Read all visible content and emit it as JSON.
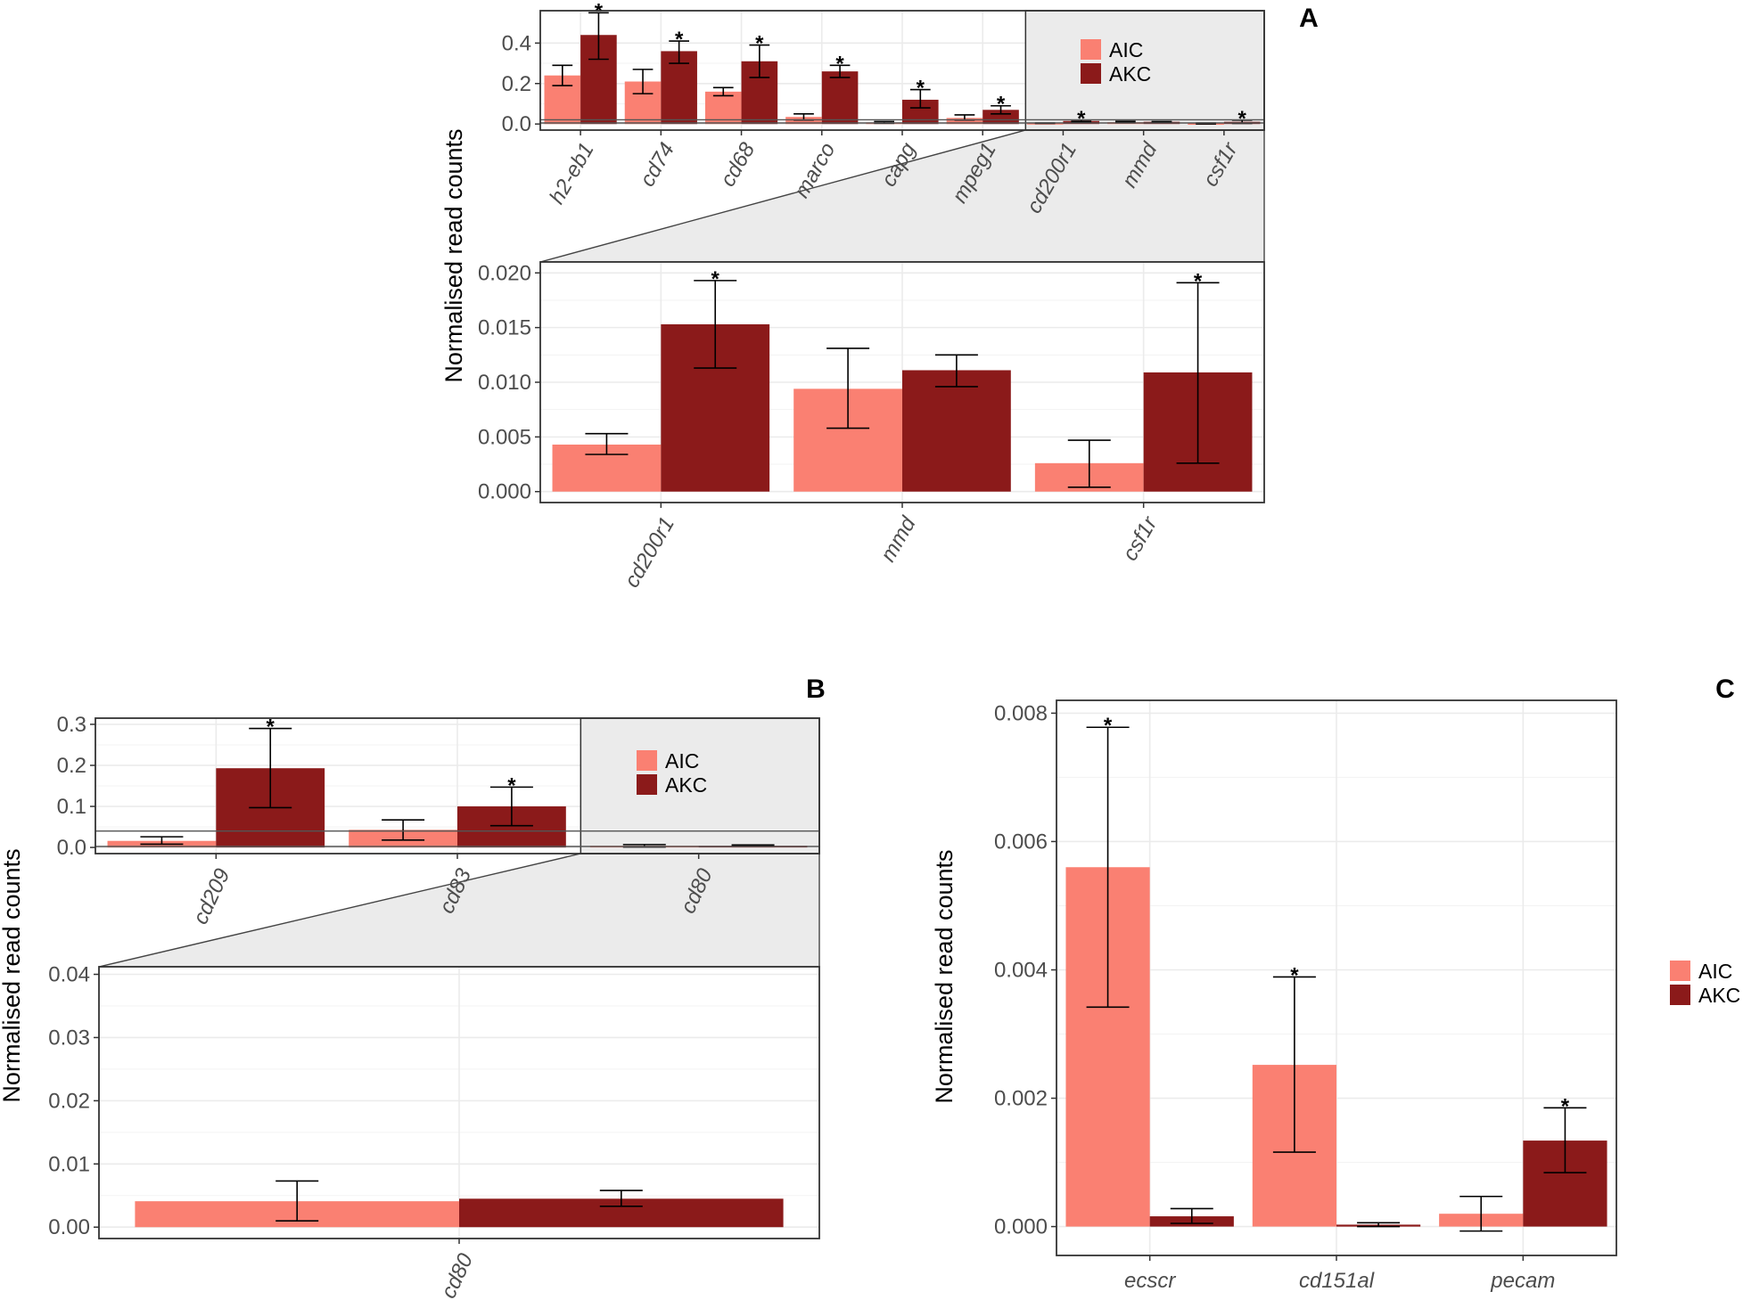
{
  "colors": {
    "AIC": "#fa8072",
    "AKC": "#8b1a1a",
    "zoom_fill": "#ebebeb",
    "grid": "#ebebeb",
    "frame": "#333333"
  },
  "legend": {
    "entries": [
      "AIC",
      "AKC"
    ]
  },
  "chart_data": [
    {
      "id": "A_top",
      "panel_label": "A",
      "type": "bar",
      "categories": [
        "h2-eb1",
        "cd74",
        "cd68",
        "marco",
        "capg",
        "mpeg1",
        "cd200r1",
        "mmd",
        "csf1r"
      ],
      "ylim": [
        -0.03,
        0.56
      ],
      "yticks": [
        0.0,
        0.2,
        0.4
      ],
      "ytick_labels": [
        "0.0",
        "0.2",
        "0.4"
      ],
      "series": [
        {
          "name": "AIC",
          "values": [
            0.24,
            0.21,
            0.16,
            0.035,
            0.008,
            0.03,
            0.004,
            0.009,
            0.003
          ],
          "err_low": [
            0.19,
            0.15,
            0.14,
            0.02,
            0.004,
            0.02,
            0.003,
            0.006,
            0.0005
          ],
          "err_high": [
            0.29,
            0.27,
            0.18,
            0.05,
            0.012,
            0.045,
            0.005,
            0.013,
            0.005
          ],
          "signif": [
            false,
            false,
            false,
            false,
            false,
            false,
            false,
            false,
            false
          ]
        },
        {
          "name": "AKC",
          "values": [
            0.44,
            0.36,
            0.31,
            0.26,
            0.12,
            0.07,
            0.015,
            0.011,
            0.011
          ],
          "err_low": [
            0.32,
            0.3,
            0.23,
            0.23,
            0.08,
            0.05,
            0.011,
            0.009,
            0.003
          ],
          "err_high": [
            0.55,
            0.41,
            0.39,
            0.29,
            0.17,
            0.09,
            0.019,
            0.012,
            0.019
          ],
          "signif": [
            true,
            true,
            true,
            true,
            true,
            true,
            true,
            false,
            true
          ]
        }
      ],
      "zoom_categories": [
        "cd200r1",
        "mmd",
        "csf1r"
      ],
      "legend_entries": [
        "AIC",
        "AKC"
      ]
    },
    {
      "id": "A_zoom",
      "type": "bar",
      "categories": [
        "cd200r1",
        "mmd",
        "csf1r"
      ],
      "ylabel": "Normalised read counts",
      "ylim": [
        -0.001,
        0.021
      ],
      "yticks": [
        0.0,
        0.005,
        0.01,
        0.015,
        0.02
      ],
      "ytick_labels": [
        "0.000",
        "0.005",
        "0.010",
        "0.015",
        "0.020"
      ],
      "series": [
        {
          "name": "AIC",
          "values": [
            0.0043,
            0.0094,
            0.0026
          ],
          "err_low": [
            0.0034,
            0.0058,
            0.0004
          ],
          "err_high": [
            0.0053,
            0.0131,
            0.0047
          ],
          "signif": [
            false,
            false,
            false
          ]
        },
        {
          "name": "AKC",
          "values": [
            0.0153,
            0.0111,
            0.0109
          ],
          "err_low": [
            0.0113,
            0.0096,
            0.0026
          ],
          "err_high": [
            0.0193,
            0.0125,
            0.0191
          ],
          "signif": [
            true,
            false,
            true
          ]
        }
      ]
    },
    {
      "id": "B_top",
      "panel_label": "B",
      "type": "bar",
      "categories": [
        "cd209",
        "cd83",
        "cd80"
      ],
      "ylim": [
        -0.015,
        0.315
      ],
      "yticks": [
        0.0,
        0.1,
        0.2,
        0.3
      ],
      "ytick_labels": [
        "0.0",
        "0.1",
        "0.2",
        "0.3"
      ],
      "series": [
        {
          "name": "AIC",
          "values": [
            0.016,
            0.043,
            0.004
          ],
          "err_low": [
            0.008,
            0.018,
            0.001
          ],
          "err_high": [
            0.026,
            0.067,
            0.007
          ],
          "signif": [
            false,
            false,
            false
          ]
        },
        {
          "name": "AKC",
          "values": [
            0.193,
            0.1,
            0.004
          ],
          "err_low": [
            0.097,
            0.053,
            0.003
          ],
          "err_high": [
            0.29,
            0.147,
            0.006
          ],
          "signif": [
            true,
            true,
            false
          ]
        }
      ],
      "zoom_categories": [
        "cd80"
      ],
      "legend_entries": [
        "AIC",
        "AKC"
      ]
    },
    {
      "id": "B_zoom",
      "type": "bar",
      "categories": [
        "cd80"
      ],
      "ylabel": "Normalised read counts",
      "ylim": [
        -0.0018,
        0.0412
      ],
      "yticks": [
        0.0,
        0.01,
        0.02,
        0.03,
        0.04
      ],
      "ytick_labels": [
        "0.00",
        "0.01",
        "0.02",
        "0.03",
        "0.04"
      ],
      "series": [
        {
          "name": "AIC",
          "values": [
            0.0041
          ],
          "err_low": [
            0.001
          ],
          "err_high": [
            0.0073
          ],
          "signif": [
            false
          ]
        },
        {
          "name": "AKC",
          "values": [
            0.0045
          ],
          "err_low": [
            0.0033
          ],
          "err_high": [
            0.0058
          ],
          "signif": [
            false
          ]
        }
      ]
    },
    {
      "id": "C",
      "panel_label": "C",
      "type": "bar",
      "categories": [
        "ecscr",
        "cd151al",
        "pecam"
      ],
      "ylabel": "Normalised read counts",
      "ylim": [
        -0.00045,
        0.0082
      ],
      "yticks": [
        0.0,
        0.002,
        0.004,
        0.006,
        0.008
      ],
      "ytick_labels": [
        "0.000",
        "0.002",
        "0.004",
        "0.006",
        "0.008"
      ],
      "series": [
        {
          "name": "AIC",
          "values": [
            0.0056,
            0.00252,
            0.0002
          ],
          "err_low": [
            0.00342,
            0.00116,
            -7e-05
          ],
          "err_high": [
            0.00778,
            0.00389,
            0.00047
          ],
          "signif": [
            true,
            true,
            false
          ]
        },
        {
          "name": "AKC",
          "values": [
            0.00016,
            3e-05,
            0.00134
          ],
          "err_low": [
            5e-05,
            0.0,
            0.00084
          ],
          "err_high": [
            0.00028,
            6e-05,
            0.00185
          ],
          "signif": [
            false,
            false,
            true
          ]
        }
      ],
      "legend_entries": [
        "AIC",
        "AKC"
      ]
    }
  ]
}
